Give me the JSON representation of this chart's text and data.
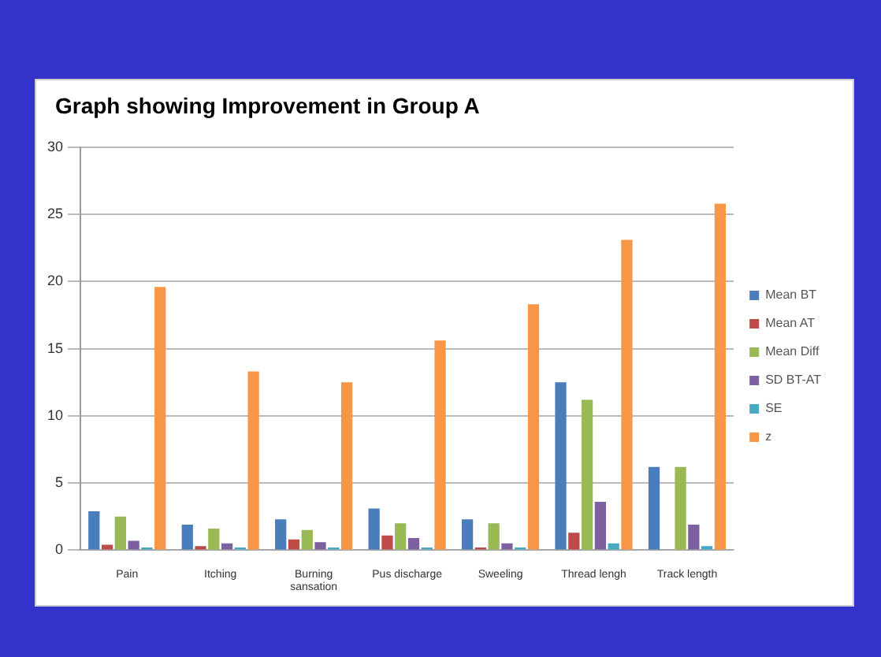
{
  "chart_data": {
    "type": "bar",
    "title": "Graph showing Improvement in Group A",
    "categories": [
      "Pain",
      "Itching",
      "Burning sansation",
      "Pus discharge",
      "Sweeling",
      "Thread lengh",
      "Track length"
    ],
    "series": [
      {
        "name": "Mean BT",
        "color": "#4a7ebb",
        "values": [
          2.9,
          1.9,
          2.3,
          3.1,
          2.3,
          12.5,
          6.2
        ]
      },
      {
        "name": "Mean AT",
        "color": "#be4b48",
        "values": [
          0.4,
          0.3,
          0.8,
          1.1,
          0.2,
          1.3,
          0
        ]
      },
      {
        "name": "Mean Diff",
        "color": "#98b954",
        "values": [
          2.5,
          1.6,
          1.5,
          2.0,
          2.0,
          11.2,
          6.2
        ]
      },
      {
        "name": "SD BT-AT",
        "color": "#7d60a0",
        "values": [
          0.7,
          0.5,
          0.6,
          0.9,
          0.5,
          3.6,
          1.9
        ]
      },
      {
        "name": "SE",
        "color": "#46aac5",
        "values": [
          0.2,
          0.2,
          0.2,
          0.2,
          0.2,
          0.5,
          0.3
        ]
      },
      {
        "name": "z",
        "color": "#f79646",
        "values": [
          19.6,
          13.3,
          12.5,
          15.6,
          18.3,
          23.1,
          25.8
        ]
      }
    ],
    "ylim": [
      0,
      30
    ],
    "yticks": [
      0,
      5,
      10,
      15,
      20,
      25,
      30
    ],
    "grid": "y",
    "legend": "right"
  }
}
